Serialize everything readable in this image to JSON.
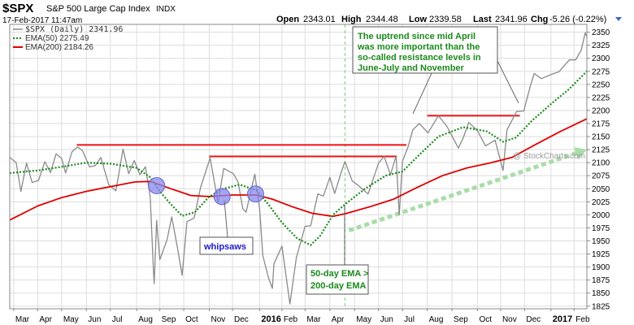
{
  "header": {
    "symbol": "$SPX",
    "name": "S&P 500 Large Cap Index",
    "exchange": "INDX",
    "date": "17-Feb-2017 11:47am",
    "open_label": "Open",
    "open": "2343.01",
    "high_label": "High",
    "high": "2344.48",
    "low_label": "Low",
    "low": "2339.58",
    "last_label": "Last",
    "last": "2341.96",
    "chg_label": "Chg",
    "chg": "-5.26 (-0.22%)",
    "chg_arrow": "caret-down-icon"
  },
  "legend": {
    "price": "$SPX (Daily) 2341.96",
    "ema50": "EMA(50) 2275.49",
    "ema200": "EMA(200) 2184.26"
  },
  "watermark": "@ StockCharts.com",
  "colors": {
    "price": "#8a8a8a",
    "ema50": "#1f8a1f",
    "ema200": "#e00000",
    "resistance": "#ee1111",
    "annotation_text": "#1a8a1a",
    "whipsaw_text": "#1a1acc",
    "marker_fill": "#8888ee",
    "arrow": "#a8dca8",
    "grid": "#dddddd"
  },
  "annotations": {
    "uptrend": [
      "The uptrend since mid April",
      "was more important than the",
      "so-called resistance levels in",
      "June-July and November"
    ],
    "whipsaws": "whipsaws",
    "crossover": [
      "50-day EMA >",
      "200-day EMA"
    ]
  },
  "chart_data": {
    "type": "line",
    "y_axis": {
      "min": 1820,
      "max": 2365,
      "ticks": [
        1825,
        1850,
        1875,
        1900,
        1925,
        1950,
        1975,
        2000,
        2025,
        2050,
        2075,
        2100,
        2125,
        2150,
        2175,
        2200,
        2225,
        2250,
        2275,
        2300,
        2325,
        2350
      ],
      "position": "right"
    },
    "x_axis": {
      "start": "2015-02-25",
      "end": "2017-02-17",
      "ticks": [
        {
          "label": "Mar",
          "date": "2015-03-02"
        },
        {
          "label": "Apr",
          "date": "2015-04-01"
        },
        {
          "label": "May",
          "date": "2015-05-01"
        },
        {
          "label": "Jun",
          "date": "2015-06-01"
        },
        {
          "label": "Jul",
          "date": "2015-07-01"
        },
        {
          "label": "Aug",
          "date": "2015-08-03"
        },
        {
          "label": "Sep",
          "date": "2015-09-01"
        },
        {
          "label": "Oct",
          "date": "2015-10-01"
        },
        {
          "label": "Nov",
          "date": "2015-11-02"
        },
        {
          "label": "Dec",
          "date": "2015-12-01"
        },
        {
          "label": "2016",
          "date": "2016-01-04",
          "bold": true
        },
        {
          "label": "Feb",
          "date": "2016-02-01"
        },
        {
          "label": "Mar",
          "date": "2016-03-01"
        },
        {
          "label": "Apr",
          "date": "2016-04-01"
        },
        {
          "label": "May",
          "date": "2016-05-02"
        },
        {
          "label": "Jun",
          "date": "2016-06-01"
        },
        {
          "label": "Jul",
          "date": "2016-07-01"
        },
        {
          "label": "Aug",
          "date": "2016-08-01"
        },
        {
          "label": "Sep",
          "date": "2016-09-01"
        },
        {
          "label": "Oct",
          "date": "2016-10-03"
        },
        {
          "label": "Nov",
          "date": "2016-11-01"
        },
        {
          "label": "Dec",
          "date": "2016-12-01"
        },
        {
          "label": "2017",
          "date": "2017-01-03",
          "bold": true
        },
        {
          "label": "Feb",
          "date": "2017-02-01"
        }
      ]
    },
    "grid": true,
    "series": [
      {
        "name": "$SPX (Daily) 2341.96",
        "style": "solid",
        "points": [
          [
            "2015-02-25",
            2110
          ],
          [
            "2015-03-05",
            2100
          ],
          [
            "2015-03-11",
            2045
          ],
          [
            "2015-03-18",
            2099
          ],
          [
            "2015-03-25",
            2062
          ],
          [
            "2015-04-02",
            2066
          ],
          [
            "2015-04-10",
            2102
          ],
          [
            "2015-04-17",
            2081
          ],
          [
            "2015-04-24",
            2117
          ],
          [
            "2015-05-01",
            2108
          ],
          [
            "2015-05-06",
            2080
          ],
          [
            "2015-05-14",
            2121
          ],
          [
            "2015-05-21",
            2130
          ],
          [
            "2015-05-27",
            2123
          ],
          [
            "2015-06-05",
            2092
          ],
          [
            "2015-06-12",
            2094
          ],
          [
            "2015-06-19",
            2110
          ],
          [
            "2015-06-29",
            2058
          ],
          [
            "2015-07-08",
            2046
          ],
          [
            "2015-07-17",
            2126
          ],
          [
            "2015-07-24",
            2079
          ],
          [
            "2015-07-31",
            2104
          ],
          [
            "2015-08-07",
            2077
          ],
          [
            "2015-08-14",
            2092
          ],
          [
            "2015-08-20",
            2035
          ],
          [
            "2015-08-24",
            1893
          ],
          [
            "2015-08-25",
            1868
          ],
          [
            "2015-08-28",
            1989
          ],
          [
            "2015-09-01",
            1914
          ],
          [
            "2015-09-10",
            1952
          ],
          [
            "2015-09-16",
            1996
          ],
          [
            "2015-09-23",
            1938
          ],
          [
            "2015-09-29",
            1884
          ],
          [
            "2015-10-05",
            1987
          ],
          [
            "2015-10-14",
            1994
          ],
          [
            "2015-10-22",
            2052
          ],
          [
            "2015-11-03",
            2109
          ],
          [
            "2015-11-13",
            2023
          ],
          [
            "2015-11-20",
            2089
          ],
          [
            "2015-12-02",
            2079
          ],
          [
            "2015-12-08",
            2063
          ],
          [
            "2015-12-14",
            2012
          ],
          [
            "2015-12-18",
            2005
          ],
          [
            "2015-12-29",
            2078
          ],
          [
            "2016-01-04",
            2012
          ],
          [
            "2016-01-08",
            1922
          ],
          [
            "2016-01-15",
            1880
          ],
          [
            "2016-01-20",
            1859
          ],
          [
            "2016-01-22",
            1906
          ],
          [
            "2016-02-01",
            1940
          ],
          [
            "2016-02-11",
            1829
          ],
          [
            "2016-02-19",
            1917
          ],
          [
            "2016-03-01",
            1978
          ],
          [
            "2016-03-08",
            1979
          ],
          [
            "2016-03-17",
            2040
          ],
          [
            "2016-03-24",
            2036
          ],
          [
            "2016-04-01",
            2072
          ],
          [
            "2016-04-07",
            2041
          ],
          [
            "2016-04-15",
            2080
          ],
          [
            "2016-04-20",
            2102
          ],
          [
            "2016-04-29",
            2065
          ],
          [
            "2016-05-06",
            2057
          ],
          [
            "2016-05-19",
            2040
          ],
          [
            "2016-06-01",
            2099
          ],
          [
            "2016-06-08",
            2112
          ],
          [
            "2016-06-16",
            2077
          ],
          [
            "2016-06-23",
            2113
          ],
          [
            "2016-06-27",
            2000
          ],
          [
            "2016-07-01",
            2103
          ],
          [
            "2016-07-08",
            2130
          ],
          [
            "2016-07-14",
            2163
          ],
          [
            "2016-07-22",
            2175
          ],
          [
            "2016-08-02",
            2157
          ],
          [
            "2016-08-15",
            2190
          ],
          [
            "2016-08-26",
            2169
          ],
          [
            "2016-09-09",
            2128
          ],
          [
            "2016-09-15",
            2147
          ],
          [
            "2016-09-22",
            2177
          ],
          [
            "2016-10-03",
            2161
          ],
          [
            "2016-10-13",
            2132
          ],
          [
            "2016-10-25",
            2143
          ],
          [
            "2016-11-04",
            2085
          ],
          [
            "2016-11-09",
            2163
          ],
          [
            "2016-11-21",
            2198
          ],
          [
            "2016-11-30",
            2199
          ],
          [
            "2016-12-08",
            2246
          ],
          [
            "2016-12-13",
            2271
          ],
          [
            "2016-12-22",
            2261
          ],
          [
            "2017-01-05",
            2270
          ],
          [
            "2017-01-13",
            2274
          ],
          [
            "2017-01-26",
            2297
          ],
          [
            "2017-02-03",
            2297
          ],
          [
            "2017-02-10",
            2316
          ],
          [
            "2017-02-15",
            2349
          ],
          [
            "2017-02-17",
            2341
          ]
        ]
      },
      {
        "name": "EMA(50) 2275.49",
        "style": "dotted",
        "points": [
          [
            "2015-02-25",
            2080
          ],
          [
            "2015-04-01",
            2085
          ],
          [
            "2015-05-01",
            2092
          ],
          [
            "2015-06-01",
            2100
          ],
          [
            "2015-07-01",
            2098
          ],
          [
            "2015-08-03",
            2090
          ],
          [
            "2015-08-20",
            2072
          ],
          [
            "2015-09-01",
            2045
          ],
          [
            "2015-09-15",
            2020
          ],
          [
            "2015-09-29",
            1998
          ],
          [
            "2015-10-15",
            2005
          ],
          [
            "2015-11-02",
            2035
          ],
          [
            "2015-11-20",
            2050
          ],
          [
            "2015-12-10",
            2058
          ],
          [
            "2015-12-31",
            2047
          ],
          [
            "2016-01-15",
            2020
          ],
          [
            "2016-02-01",
            1985
          ],
          [
            "2016-02-20",
            1955
          ],
          [
            "2016-03-08",
            1942
          ],
          [
            "2016-03-20",
            1960
          ],
          [
            "2016-04-05",
            2000
          ],
          [
            "2016-04-20",
            2020
          ],
          [
            "2016-05-15",
            2050
          ],
          [
            "2016-06-10",
            2075
          ],
          [
            "2016-07-01",
            2083
          ],
          [
            "2016-07-22",
            2115
          ],
          [
            "2016-08-15",
            2150
          ],
          [
            "2016-09-15",
            2168
          ],
          [
            "2016-10-15",
            2160
          ],
          [
            "2016-11-04",
            2140
          ],
          [
            "2016-11-20",
            2148
          ],
          [
            "2016-12-10",
            2180
          ],
          [
            "2017-01-05",
            2215
          ],
          [
            "2017-01-25",
            2240
          ],
          [
            "2017-02-17",
            2275
          ]
        ]
      },
      {
        "name": "EMA(200) 2184.26",
        "style": "solid",
        "points": [
          [
            "2015-02-25",
            1990
          ],
          [
            "2015-04-01",
            2017
          ],
          [
            "2015-05-01",
            2033
          ],
          [
            "2015-06-01",
            2045
          ],
          [
            "2015-07-01",
            2054
          ],
          [
            "2015-08-01",
            2063
          ],
          [
            "2015-08-20",
            2064
          ],
          [
            "2015-09-15",
            2050
          ],
          [
            "2015-10-10",
            2037
          ],
          [
            "2015-11-02",
            2035
          ],
          [
            "2015-12-01",
            2038
          ],
          [
            "2015-12-31",
            2038
          ],
          [
            "2016-01-20",
            2030
          ],
          [
            "2016-02-15",
            2015
          ],
          [
            "2016-03-10",
            2003
          ],
          [
            "2016-04-05",
            1997
          ],
          [
            "2016-04-20",
            2002
          ],
          [
            "2016-05-20",
            2015
          ],
          [
            "2016-06-20",
            2030
          ],
          [
            "2016-07-20",
            2053
          ],
          [
            "2016-08-20",
            2075
          ],
          [
            "2016-09-20",
            2090
          ],
          [
            "2016-10-20",
            2100
          ],
          [
            "2016-11-15",
            2110
          ],
          [
            "2016-12-15",
            2135
          ],
          [
            "2017-01-15",
            2160
          ],
          [
            "2017-02-17",
            2184
          ]
        ]
      }
    ],
    "resistance_lines": [
      {
        "from": "2015-05-20",
        "to": "2016-07-06",
        "value": 2134
      },
      {
        "from": "2015-11-02",
        "to": "2016-06-24",
        "value": 2112
      },
      {
        "from": "2016-08-01",
        "to": "2016-11-25",
        "value": 2190
      }
    ],
    "whipsaw_markers": [
      {
        "date": "2015-08-28",
        "value": 2056
      },
      {
        "date": "2015-11-18",
        "value": 2035
      },
      {
        "date": "2015-12-30",
        "value": 2040
      }
    ],
    "crossover_date": "2016-04-20",
    "trend_arrow": {
      "from": [
        "2016-04-25",
        1970
      ],
      "to": [
        "2017-02-17",
        2125
      ]
    }
  }
}
